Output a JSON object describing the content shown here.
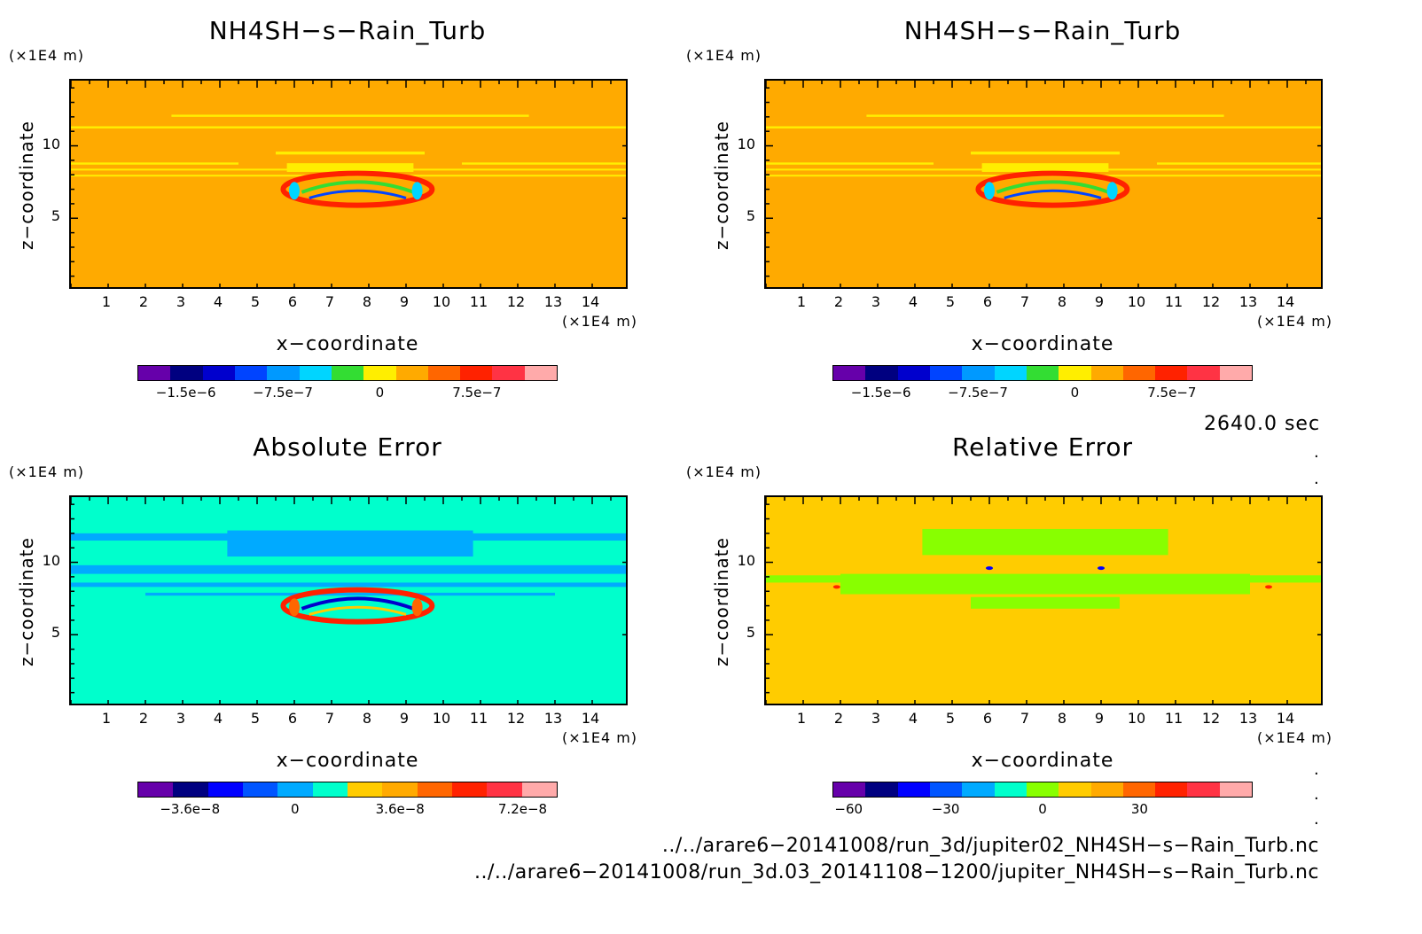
{
  "panels": [
    {
      "title": "NH4SH−s−Rain_Turb",
      "yunit": "(×1E4 m)",
      "xunit": "(×1E4 m)",
      "ylabel": "z−coordinate",
      "xlabel": "x−coordinate",
      "xticks": [
        "1",
        "2",
        "3",
        "4",
        "5",
        "6",
        "7",
        "8",
        "9",
        "10",
        "11",
        "12",
        "13",
        "14"
      ],
      "yticks": [
        "10",
        "5"
      ],
      "bg": "#ffaa00",
      "colorbar": {
        "colors": [
          "#6600aa",
          "#000080",
          "#0000cd",
          "#0044ff",
          "#0099ff",
          "#00d5ff",
          "#33dd33",
          "#ffee00",
          "#ffaa00",
          "#ff6600",
          "#ff2200",
          "#ff3344",
          "#ffaaaa"
        ],
        "labels": [
          "−1.5e−6",
          "−7.5e−7",
          "0",
          "7.5e−7"
        ]
      }
    },
    {
      "title": "NH4SH−s−Rain_Turb",
      "yunit": "(×1E4 m)",
      "xunit": "(×1E4 m)",
      "ylabel": "z−coordinate",
      "xlabel": "x−coordinate",
      "xticks": [
        "1",
        "2",
        "3",
        "4",
        "5",
        "6",
        "7",
        "8",
        "9",
        "10",
        "11",
        "12",
        "13",
        "14"
      ],
      "yticks": [
        "10",
        "5"
      ],
      "bg": "#ffaa00",
      "colorbar": {
        "colors": [
          "#6600aa",
          "#000080",
          "#0000cd",
          "#0044ff",
          "#0099ff",
          "#00d5ff",
          "#33dd33",
          "#ffee00",
          "#ffaa00",
          "#ff6600",
          "#ff2200",
          "#ff3344",
          "#ffaaaa"
        ],
        "labels": [
          "−1.5e−6",
          "−7.5e−7",
          "0",
          "7.5e−7"
        ]
      }
    },
    {
      "title": "Absolute Error",
      "yunit": "(×1E4 m)",
      "xunit": "(×1E4 m)",
      "ylabel": "z−coordinate",
      "xlabel": "x−coordinate",
      "xticks": [
        "1",
        "2",
        "3",
        "4",
        "5",
        "6",
        "7",
        "8",
        "9",
        "10",
        "11",
        "12",
        "13",
        "14"
      ],
      "yticks": [
        "10",
        "5"
      ],
      "bg": "#00ffcc",
      "colorbar": {
        "colors": [
          "#6600aa",
          "#000080",
          "#0000ff",
          "#0055ff",
          "#00aaff",
          "#00ffcc",
          "#ffcc00",
          "#ffaa00",
          "#ff6600",
          "#ff2200",
          "#ff3344",
          "#ffaaaa"
        ],
        "labels": [
          "−3.6e−8",
          "0",
          "3.6e−8",
          "7.2e−8"
        ]
      }
    },
    {
      "title": "Relative Error",
      "yunit": "(×1E4 m)",
      "xunit": "(×1E4 m)",
      "ylabel": "z−coordinate",
      "xlabel": "x−coordinate",
      "xticks": [
        "1",
        "2",
        "3",
        "4",
        "5",
        "6",
        "7",
        "8",
        "9",
        "10",
        "11",
        "12",
        "13",
        "14"
      ],
      "yticks": [
        "10",
        "5"
      ],
      "bg": "#ffcc00",
      "colorbar": {
        "colors": [
          "#6600aa",
          "#000080",
          "#0000ff",
          "#0055ff",
          "#00aaff",
          "#00ffcc",
          "#88ff00",
          "#ffcc00",
          "#ffaa00",
          "#ff6600",
          "#ff2200",
          "#ff3344",
          "#ffaaaa"
        ],
        "labels": [
          "−60",
          "−30",
          "0",
          "30"
        ]
      }
    }
  ],
  "time_label": "2640.0 sec",
  "paths": [
    "../../arare6−20141008/run_3d/jupiter02_NH4SH−s−Rain_Turb.nc",
    "../../arare6−20141008/run_3d.03_20141108−1200/jupiter_NH4SH−s−Rain_Turb.nc"
  ],
  "chart_data": [
    {
      "type": "heatmap",
      "title": "NH4SH−s−Rain_Turb",
      "xlabel": "x−coordinate",
      "ylabel": "z−coordinate",
      "xunit": "(×1E4 m)",
      "yunit": "(×1E4 m)",
      "xlim": [
        0,
        15
      ],
      "ylim": [
        0,
        15
      ],
      "colorbar_labels": [
        "−1.5e−6",
        "−7.5e−7",
        "0",
        "7.5e−7"
      ]
    },
    {
      "type": "heatmap",
      "title": "NH4SH−s−Rain_Turb",
      "xlabel": "x−coordinate",
      "ylabel": "z−coordinate",
      "xunit": "(×1E4 m)",
      "yunit": "(×1E4 m)",
      "xlim": [
        0,
        15
      ],
      "ylim": [
        0,
        15
      ],
      "colorbar_labels": [
        "−1.5e−6",
        "−7.5e−7",
        "0",
        "7.5e−7"
      ]
    },
    {
      "type": "heatmap",
      "title": "Absolute Error",
      "xlabel": "x−coordinate",
      "ylabel": "z−coordinate",
      "xunit": "(×1E4 m)",
      "yunit": "(×1E4 m)",
      "xlim": [
        0,
        15
      ],
      "ylim": [
        0,
        15
      ],
      "colorbar_labels": [
        "−3.6e−8",
        "0",
        "3.6e−8",
        "7.2e−8"
      ]
    },
    {
      "type": "heatmap",
      "title": "Relative Error",
      "xlabel": "x−coordinate",
      "ylabel": "z−coordinate",
      "xunit": "(×1E4 m)",
      "yunit": "(×1E4 m)",
      "xlim": [
        0,
        15
      ],
      "ylim": [
        0,
        15
      ],
      "colorbar_labels": [
        "−60",
        "−30",
        "0",
        "30"
      ]
    }
  ]
}
